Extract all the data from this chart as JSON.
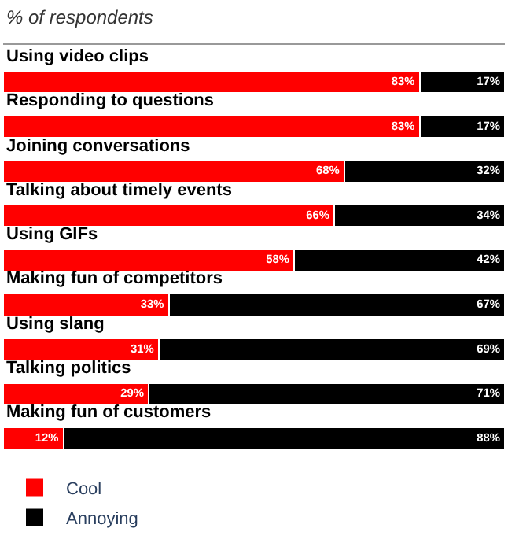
{
  "chart_data": {
    "type": "bar",
    "orientation": "horizontal",
    "stacked": true,
    "subtitle": "% of respondents",
    "categories": [
      "Using video clips",
      "Responding to questions",
      "Joining conversations",
      "Talking about timely events",
      "Using GIFs",
      "Making fun of competitors",
      "Using slang",
      "Talking politics",
      "Making fun of customers"
    ],
    "series": [
      {
        "name": "Cool",
        "color": "#ff0000",
        "values": [
          83,
          83,
          68,
          66,
          58,
          33,
          31,
          29,
          12
        ],
        "value_labels": [
          "83%",
          "83%",
          "68%",
          "66%",
          "58%",
          "33%",
          "31%",
          "29%",
          "12%"
        ]
      },
      {
        "name": "Annoying",
        "color": "#000000",
        "values": [
          17,
          17,
          32,
          34,
          42,
          67,
          69,
          71,
          88
        ],
        "value_labels": [
          "17%",
          "17%",
          "32%",
          "34%",
          "42%",
          "67%",
          "69%",
          "71%",
          "88%"
        ]
      }
    ],
    "xlim": [
      0,
      100
    ],
    "tick_labels": false,
    "legend": "bottom"
  }
}
